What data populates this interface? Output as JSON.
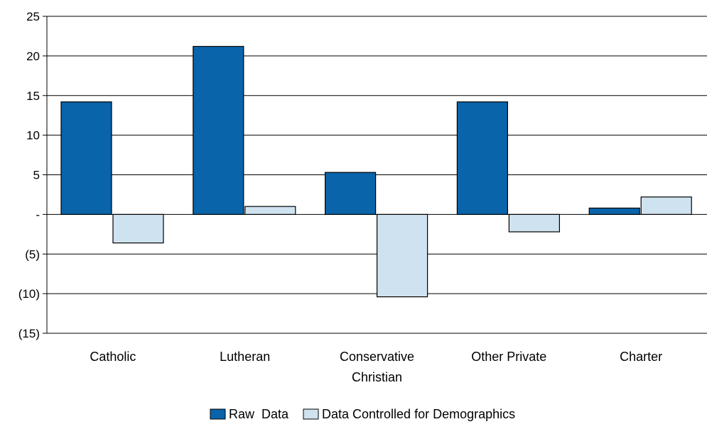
{
  "chart_data": {
    "type": "bar",
    "categories": [
      [
        "Catholic"
      ],
      [
        "Lutheran"
      ],
      [
        "Conservative",
        "Christian"
      ],
      [
        "Other Private"
      ],
      [
        "Charter"
      ]
    ],
    "series": [
      {
        "name": "Raw  Data",
        "values": [
          14.2,
          21.2,
          5.3,
          14.2,
          0.8
        ]
      },
      {
        "name": "Data Controlled for Demographics",
        "values": [
          -3.6,
          1.0,
          -10.4,
          -2.2,
          2.2
        ]
      }
    ],
    "ylim": [
      -15,
      25
    ],
    "yticks": [
      25,
      20,
      15,
      10,
      5,
      0,
      -5,
      -10,
      -15
    ],
    "ytick_labels": [
      "25",
      "20",
      "15",
      "10",
      "5",
      "-",
      "(5)",
      "(10)",
      "(15)"
    ],
    "title": "",
    "xlabel": "",
    "ylabel": "",
    "grid": true,
    "legend_position": "bottom-center",
    "colors": [
      "#0a64aa",
      "#cfe2f0"
    ]
  }
}
